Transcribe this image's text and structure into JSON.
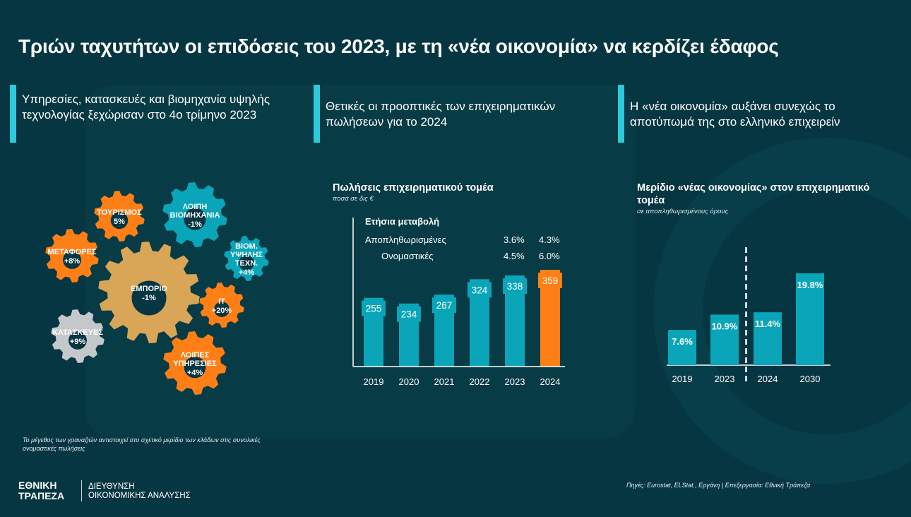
{
  "title": "Τριών ταχυτήτων οι επιδόσεις του 2023, με τη «νέα οικονομία» να κερδίζει έδαφος",
  "panels": [
    {
      "heading": "Υπηρεσίες, κατασκευές και βιομηχανία υψηλής τεχνολογίας ξεχώρισαν στο 4ο τρίμηνο 2023"
    },
    {
      "heading": "Θετικές οι προοπτικές των επιχειρηματικών πωλήσεων για το 2024"
    },
    {
      "heading": "Η «νέα οικονομία» αυξάνει συνεχώς το αποτύπωμά της στο ελληνικό επιχειρείν"
    }
  ],
  "colors": {
    "background": "#063642",
    "accent": "#2ec9dc",
    "teal": "#0aa5b8",
    "orange": "#ff7f17",
    "gold": "#d9a556",
    "grey": "#c5c8ca"
  },
  "gears": [
    {
      "label": "ΕΜΠΟΡΙΟ",
      "value": "-1%",
      "color": "gold"
    },
    {
      "label": "ΛΟΙΠΗ ΒΙΟΜΗΧΑΝΙΑ",
      "value": "-1%",
      "color": "teal"
    },
    {
      "label": "ΤΟΥΡΙΣΜΟΣ",
      "value": "5%",
      "color": "orange"
    },
    {
      "label": "ΜΕΤΑΦΟΡΕΣ",
      "value": "+8%",
      "color": "orange"
    },
    {
      "label": "ΒΙΟΜ. ΥΨΗΛΗΣ ΤΕΧΝ.",
      "value": "+4%",
      "color": "teal"
    },
    {
      "label": "IT",
      "value": "+20%",
      "color": "orange"
    },
    {
      "label": "ΚΑΤΑΣΚΕΥΕΣ",
      "value": "+9%",
      "color": "grey"
    },
    {
      "label": "ΛΟΙΠΕΣ ΥΠΗΡΕΣΙΕΣ",
      "value": "+4%",
      "color": "orange"
    }
  ],
  "footnote": "Το μέγεθος των γραναζιών αντιστοιχεί στο σχετικό μερίδιο των κλάδων στις συνολικές ονομαστικές πωλήσεις",
  "chart_data": [
    {
      "type": "bar",
      "title": "Πωλήσεις επιχειρηματικού τομέα",
      "subtitle": "ποσά σε δις €",
      "categories": [
        "2019",
        "2020",
        "2021",
        "2022",
        "2023",
        "2024"
      ],
      "values": [
        255,
        234,
        267,
        324,
        338,
        359
      ],
      "highlight_index": 5,
      "ylim": [
        0,
        400
      ],
      "table": {
        "header": "Ετήσια μεταβολή",
        "rows": [
          {
            "label": "Αποπληθωρισμένες",
            "v2023": "3.6%",
            "v2024": "4.3%"
          },
          {
            "label": "Ονομαστικές",
            "v2023": "4.5%",
            "v2024": "6.0%"
          }
        ]
      }
    },
    {
      "type": "bar",
      "title": "Μερίδιο «νέας οικονομίας» στον επιχειρηματικό τομέα",
      "subtitle": "σε αποπληθωρισμένους όρους",
      "categories": [
        "2019",
        "2023",
        "2024",
        "2030"
      ],
      "values": [
        7.6,
        10.9,
        11.4,
        19.8
      ],
      "labels": [
        "7.6%",
        "10.9%",
        "11.4%",
        "19.8%"
      ],
      "ylim": [
        0,
        22
      ],
      "divider_after_index": 1
    }
  ],
  "source": "Πηγές: Eurostat, ELStat., Εργάνη | Επεξεργασία: Εθνική Τράπεζα",
  "logo": {
    "line1": "ΕΘΝΙΚΗ",
    "line2": "ΤΡΑΠΕΖΑ"
  },
  "department": {
    "line1": "ΔΙΕΥΘΥΝΣΗ",
    "line2": "ΟΙΚΟΝΟΜΙΚΗΣ ΑΝΑΛΥΣΗΣ"
  }
}
